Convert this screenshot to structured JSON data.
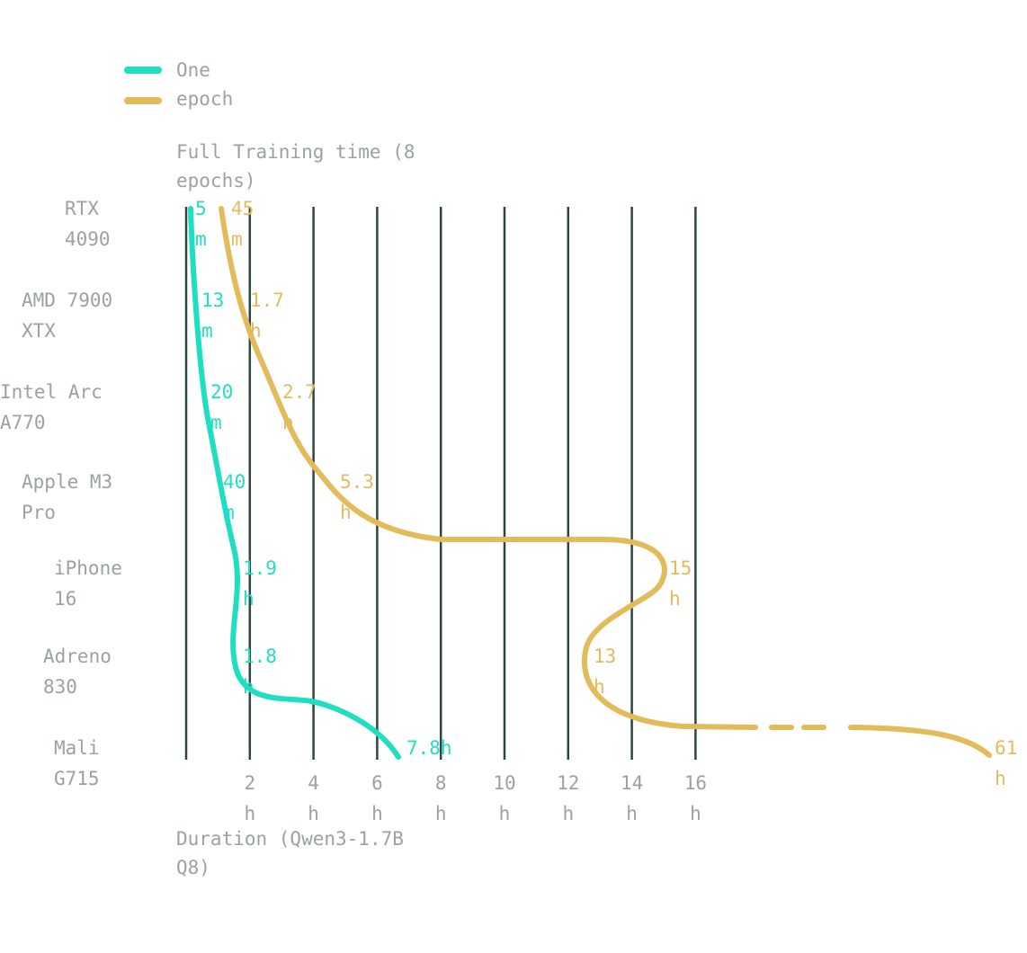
{
  "chart_data": {
    "type": "line",
    "title": "Full Training time (8 epochs)",
    "xlabel": "Duration (Qwen3-1.7B Q8)",
    "ylabel": "",
    "legend_position": "top-left",
    "grid": true,
    "x_ticks": [
      "2 h",
      "4 h",
      "6 h",
      "8 h",
      "10 h",
      "12 h",
      "14 h",
      "16 h"
    ],
    "x_tick_values": [
      2,
      4,
      6,
      8,
      10,
      12,
      14,
      16
    ],
    "xlim": [
      0,
      16
    ],
    "categories": [
      "RTX 4090",
      "AMD 7900 XTX",
      "Intel Arc A770",
      "Apple M3 Pro",
      "iPhone 16",
      "Adreno 830",
      "Mali G715"
    ],
    "series": [
      {
        "name": "One",
        "color": "#1fdfc2",
        "values_hours": [
          0.083,
          0.217,
          0.333,
          0.667,
          1.9,
          1.8,
          7.8
        ],
        "value_labels": [
          "5 m",
          "13 m",
          "20 m",
          "40 m",
          "1.9 h",
          "1.8 h",
          "7.8 h"
        ]
      },
      {
        "name": "epoch",
        "color": "#e2bb5a",
        "values_hours": [
          0.75,
          1.7,
          2.7,
          5.3,
          15,
          13,
          61
        ],
        "value_labels": [
          "45 m",
          "1.7 h",
          "2.7 h",
          "5.3 h",
          "15 h",
          "13 h",
          "61 h"
        ],
        "note_axis_break_after": 16
      }
    ]
  }
}
